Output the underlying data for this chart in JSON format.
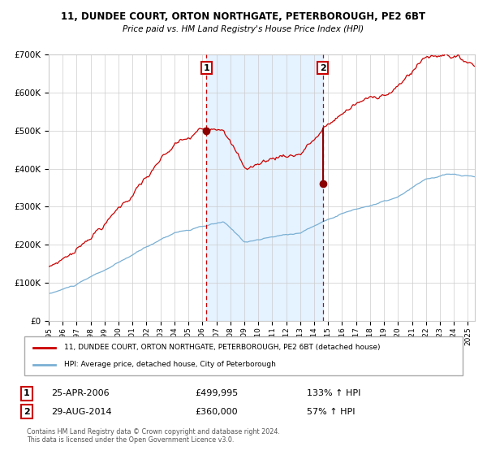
{
  "title1": "11, DUNDEE COURT, ORTON NORTHGATE, PETERBOROUGH, PE2 6BT",
  "title2": "Price paid vs. HM Land Registry's House Price Index (HPI)",
  "legend_red": "11, DUNDEE COURT, ORTON NORTHGATE, PETERBOROUGH, PE2 6BT (detached house)",
  "legend_blue": "HPI: Average price, detached house, City of Peterborough",
  "point1_date": "25-APR-2006",
  "point1_price": 499995,
  "point1_hpi_pct": "133% ↑ HPI",
  "point2_date": "29-AUG-2014",
  "point2_price": 360000,
  "point2_hpi_pct": "57% ↑ HPI",
  "footer": "Contains HM Land Registry data © Crown copyright and database right 2024.\nThis data is licensed under the Open Government Licence v3.0.",
  "ylim_max": 700000,
  "red_color": "#cc0000",
  "blue_color": "#7ab0d4",
  "bg_shade_color": "#ddeeff",
  "grid_color": "#cccccc",
  "point_color": "#8b0000",
  "dashed_color": "#cc0000",
  "box_color": "#cc0000",
  "point1_t": 2006.29,
  "point2_t": 2014.625
}
